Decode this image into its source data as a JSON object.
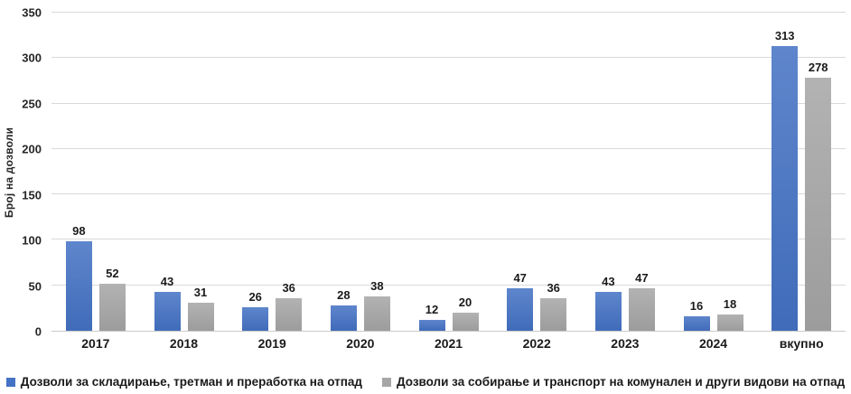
{
  "chart_data": {
    "type": "bar",
    "title": "",
    "ylabel": "Број на дозволи",
    "xlabel": "",
    "categories": [
      "2017",
      "2018",
      "2019",
      "2020",
      "2021",
      "2022",
      "2023",
      "2024",
      "вкупно"
    ],
    "series": [
      {
        "name": "Дозволи за складирање, третман и преработка на отпад",
        "color": "#4472C4",
        "values": [
          98,
          43,
          26,
          28,
          12,
          47,
          43,
          16,
          313
        ]
      },
      {
        "name": "Дозволи за собирање и транспорт на комунален и други видови на отпад",
        "color": "#A6A6A6",
        "values": [
          52,
          31,
          36,
          38,
          20,
          36,
          47,
          18,
          278
        ]
      }
    ],
    "ylim": [
      0,
      350
    ],
    "ytick_step": 50,
    "grid": true,
    "gridline_color": "#d9d9d9",
    "legend_position": "bottom"
  }
}
